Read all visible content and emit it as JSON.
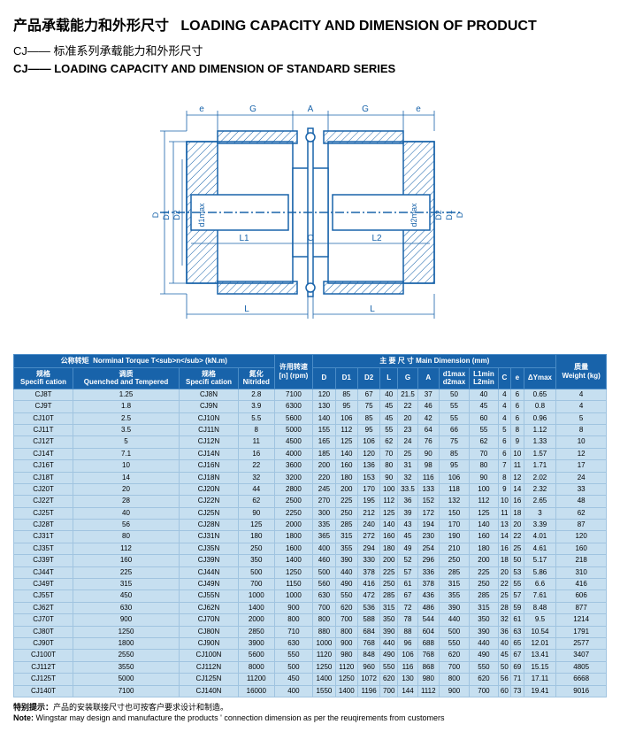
{
  "titles": {
    "main_cn": "产品承载能力和外形尺寸",
    "main_en": "LOADING CAPACITY AND DIMENSION OF PRODUCT",
    "sub_cn": "CJ—— 标准系列承载能力和外形尺寸",
    "sub_en": "CJ—— LOADING CAPACITY AND DIMENSION OF STANDARD SERIES"
  },
  "diagram": {
    "labels": [
      "e",
      "G",
      "A",
      "G",
      "e",
      "D",
      "D1",
      "D2",
      "d1max",
      "L1",
      "C",
      "L2",
      "d2max",
      "D2",
      "D1",
      "D",
      "L",
      "L"
    ],
    "stroke": "#1863aa",
    "hatch": "#1863aa"
  },
  "table": {
    "headers": {
      "torque_group_cn": "公称转矩",
      "torque_group_en": "Norminal Torque T<sub>n</sub> (kN.m)",
      "spec_cn": "规格",
      "spec_en": "Specifi cation",
      "quench_cn": "调质",
      "quench_en": "Quenched and Tempered",
      "nitrided_cn": "氮化",
      "nitrided_en": "Nitrided",
      "speed_cn": "许用转速",
      "speed_en": "[n] (rpm)",
      "dim_cn": "主 要 尺 寸",
      "dim_en": "Main Dimension  (mm)",
      "D": "D",
      "D1": "D1",
      "D2": "D2",
      "L": "L",
      "G": "G",
      "A": "A",
      "d1max_cn": "d1max",
      "d1max_en": "d2max",
      "L1min_cn": "L1min",
      "L1min_en": "L2min",
      "C": "C",
      "e": "e",
      "dY": "ΔYmax",
      "weight_cn": "质量",
      "weight_en": "Weight (kg)"
    },
    "rows": [
      [
        "CJ8T",
        "1.25",
        "CJ8N",
        "2.8",
        "7100",
        "120",
        "85",
        "67",
        "40",
        "21.5",
        "37",
        "50",
        "40",
        "4",
        "6",
        "0.65",
        "4"
      ],
      [
        "CJ9T",
        "1.8",
        "CJ9N",
        "3.9",
        "6300",
        "130",
        "95",
        "75",
        "45",
        "22",
        "46",
        "55",
        "45",
        "4",
        "6",
        "0.8",
        "4"
      ],
      [
        "CJ10T",
        "2.5",
        "CJ10N",
        "5.5",
        "5600",
        "140",
        "106",
        "85",
        "45",
        "20",
        "42",
        "55",
        "60",
        "4",
        "6",
        "0.96",
        "5"
      ],
      [
        "CJ11T",
        "3.5",
        "CJ11N",
        "8",
        "5000",
        "155",
        "112",
        "95",
        "55",
        "23",
        "64",
        "66",
        "55",
        "5",
        "8",
        "1.12",
        "8"
      ],
      [
        "CJ12T",
        "5",
        "CJ12N",
        "11",
        "4500",
        "165",
        "125",
        "106",
        "62",
        "24",
        "76",
        "75",
        "62",
        "6",
        "9",
        "1.33",
        "10"
      ],
      [
        "CJ14T",
        "7.1",
        "CJ14N",
        "16",
        "4000",
        "185",
        "140",
        "120",
        "70",
        "25",
        "90",
        "85",
        "70",
        "6",
        "10",
        "1.57",
        "12"
      ],
      [
        "CJ16T",
        "10",
        "CJ16N",
        "22",
        "3600",
        "200",
        "160",
        "136",
        "80",
        "31",
        "98",
        "95",
        "80",
        "7",
        "11",
        "1.71",
        "17"
      ],
      [
        "CJ18T",
        "14",
        "CJ18N",
        "32",
        "3200",
        "220",
        "180",
        "153",
        "90",
        "32",
        "116",
        "106",
        "90",
        "8",
        "12",
        "2.02",
        "24"
      ],
      [
        "CJ20T",
        "20",
        "CJ20N",
        "44",
        "2800",
        "245",
        "200",
        "170",
        "100",
        "33.5",
        "133",
        "118",
        "100",
        "9",
        "14",
        "2.32",
        "33"
      ],
      [
        "CJ22T",
        "28",
        "CJ22N",
        "62",
        "2500",
        "270",
        "225",
        "195",
        "112",
        "36",
        "152",
        "132",
        "112",
        "10",
        "16",
        "2.65",
        "48"
      ],
      [
        "CJ25T",
        "40",
        "CJ25N",
        "90",
        "2250",
        "300",
        "250",
        "212",
        "125",
        "39",
        "172",
        "150",
        "125",
        "11",
        "18",
        "3",
        "62"
      ],
      [
        "CJ28T",
        "56",
        "CJ28N",
        "125",
        "2000",
        "335",
        "285",
        "240",
        "140",
        "43",
        "194",
        "170",
        "140",
        "13",
        "20",
        "3.39",
        "87"
      ],
      [
        "CJ31T",
        "80",
        "CJ31N",
        "180",
        "1800",
        "365",
        "315",
        "272",
        "160",
        "45",
        "230",
        "190",
        "160",
        "14",
        "22",
        "4.01",
        "120"
      ],
      [
        "CJ35T",
        "112",
        "CJ35N",
        "250",
        "1600",
        "400",
        "355",
        "294",
        "180",
        "49",
        "254",
        "210",
        "180",
        "16",
        "25",
        "4.61",
        "160"
      ],
      [
        "CJ39T",
        "160",
        "CJ39N",
        "350",
        "1400",
        "460",
        "390",
        "330",
        "200",
        "52",
        "296",
        "250",
        "200",
        "18",
        "50",
        "5.17",
        "218"
      ],
      [
        "CJ44T",
        "225",
        "CJ44N",
        "500",
        "1250",
        "500",
        "440",
        "378",
        "225",
        "57",
        "336",
        "285",
        "225",
        "20",
        "53",
        "5.86",
        "310"
      ],
      [
        "CJ49T",
        "315",
        "CJ49N",
        "700",
        "1150",
        "560",
        "490",
        "416",
        "250",
        "61",
        "378",
        "315",
        "250",
        "22",
        "55",
        "6.6",
        "416"
      ],
      [
        "CJ55T",
        "450",
        "CJ55N",
        "1000",
        "1000",
        "630",
        "550",
        "472",
        "285",
        "67",
        "436",
        "355",
        "285",
        "25",
        "57",
        "7.61",
        "606"
      ],
      [
        "CJ62T",
        "630",
        "CJ62N",
        "1400",
        "900",
        "700",
        "620",
        "536",
        "315",
        "72",
        "486",
        "390",
        "315",
        "28",
        "59",
        "8.48",
        "877"
      ],
      [
        "CJ70T",
        "900",
        "CJ70N",
        "2000",
        "800",
        "800",
        "700",
        "588",
        "350",
        "78",
        "544",
        "440",
        "350",
        "32",
        "61",
        "9.5",
        "1214"
      ],
      [
        "CJ80T",
        "1250",
        "CJ80N",
        "2850",
        "710",
        "880",
        "800",
        "684",
        "390",
        "88",
        "604",
        "500",
        "390",
        "36",
        "63",
        "10.54",
        "1791"
      ],
      [
        "CJ90T",
        "1800",
        "CJ90N",
        "3900",
        "630",
        "1000",
        "900",
        "768",
        "440",
        "96",
        "688",
        "550",
        "440",
        "40",
        "65",
        "12.01",
        "2577"
      ],
      [
        "CJ100T",
        "2550",
        "CJ100N",
        "5600",
        "550",
        "1120",
        "980",
        "848",
        "490",
        "106",
        "768",
        "620",
        "490",
        "45",
        "67",
        "13.41",
        "3407"
      ],
      [
        "CJ112T",
        "3550",
        "CJ112N",
        "8000",
        "500",
        "1250",
        "1120",
        "960",
        "550",
        "116",
        "868",
        "700",
        "550",
        "50",
        "69",
        "15.15",
        "4805"
      ],
      [
        "CJ125T",
        "5000",
        "CJ125N",
        "11200",
        "450",
        "1400",
        "1250",
        "1072",
        "620",
        "130",
        "980",
        "800",
        "620",
        "56",
        "71",
        "17.11",
        "6668"
      ],
      [
        "CJ140T",
        "7100",
        "CJ140N",
        "16000",
        "400",
        "1550",
        "1400",
        "1196",
        "700",
        "144",
        "1112",
        "900",
        "700",
        "60",
        "73",
        "19.41",
        "9016"
      ]
    ]
  },
  "note": {
    "label_cn": "特别提示：",
    "text_cn": "产品的安装联接尺寸也可按客户要求设计和制造。",
    "label_en": "Note:",
    "text_en": "Wingstar may design and manufacture the products ' connection dimension as per the reuqirements from customers"
  }
}
